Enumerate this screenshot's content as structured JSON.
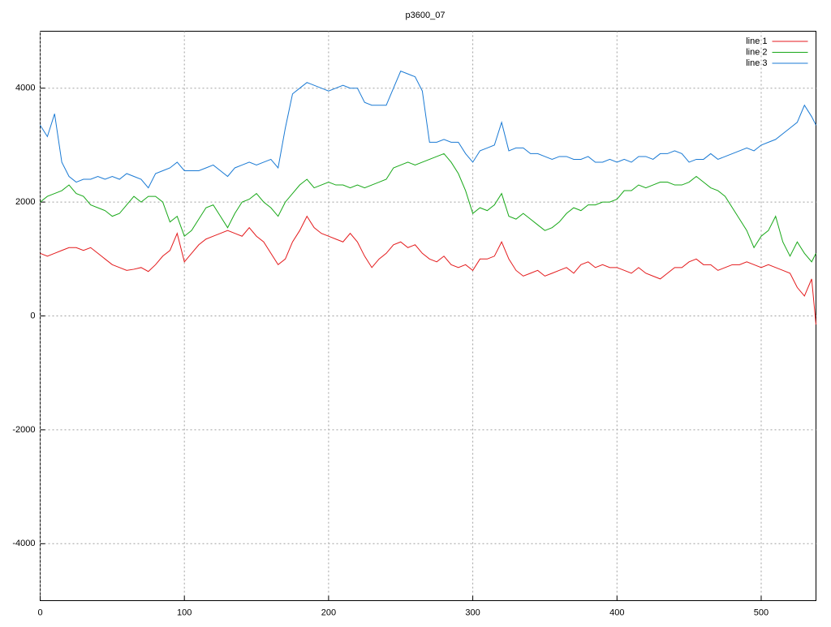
{
  "chart_data": {
    "type": "line",
    "title": "p3600_07",
    "x": [
      0,
      5,
      10,
      15,
      20,
      25,
      30,
      35,
      40,
      45,
      50,
      55,
      60,
      65,
      70,
      75,
      80,
      85,
      90,
      95,
      100,
      105,
      110,
      115,
      120,
      125,
      130,
      135,
      140,
      145,
      150,
      155,
      160,
      165,
      170,
      175,
      180,
      185,
      190,
      195,
      200,
      205,
      210,
      215,
      220,
      225,
      230,
      235,
      240,
      245,
      250,
      255,
      260,
      265,
      270,
      275,
      280,
      285,
      290,
      295,
      300,
      305,
      310,
      315,
      320,
      325,
      330,
      335,
      340,
      345,
      350,
      355,
      360,
      365,
      370,
      375,
      380,
      385,
      390,
      395,
      400,
      405,
      410,
      415,
      420,
      425,
      430,
      435,
      440,
      445,
      450,
      455,
      460,
      465,
      470,
      475,
      480,
      485,
      490,
      495,
      500,
      505,
      510,
      515,
      520,
      525,
      530,
      535,
      538
    ],
    "series": [
      {
        "name": "line 1",
        "color": "#e41a1c",
        "values": [
          1100,
          1050,
          1100,
          1150,
          1200,
          1200,
          1150,
          1200,
          1100,
          1000,
          900,
          850,
          800,
          820,
          850,
          780,
          900,
          1050,
          1150,
          1450,
          950,
          1100,
          1250,
          1350,
          1400,
          1450,
          1500,
          1450,
          1400,
          1550,
          1400,
          1300,
          1100,
          900,
          1000,
          1300,
          1500,
          1750,
          1550,
          1450,
          1400,
          1350,
          1300,
          1450,
          1300,
          1050,
          850,
          1000,
          1100,
          1250,
          1300,
          1200,
          1250,
          1100,
          1000,
          950,
          1050,
          900,
          850,
          900,
          800,
          1000,
          1000,
          1050,
          1300,
          1000,
          800,
          700,
          750,
          800,
          700,
          750,
          800,
          850,
          750,
          900,
          950,
          850,
          900,
          850,
          850,
          800,
          750,
          850,
          750,
          700,
          650,
          750,
          850,
          850,
          950,
          1000,
          900,
          900,
          800,
          850,
          900,
          900,
          950,
          900,
          850,
          900,
          850,
          800,
          750,
          500,
          350,
          650,
          -150
        ]
      },
      {
        "name": "line 2",
        "color": "#18a818",
        "values": [
          2000,
          2100,
          2150,
          2200,
          2300,
          2150,
          2100,
          1950,
          1900,
          1850,
          1750,
          1800,
          1950,
          2100,
          2000,
          2100,
          2100,
          2000,
          1650,
          1750,
          1400,
          1500,
          1700,
          1900,
          1950,
          1750,
          1550,
          1800,
          2000,
          2050,
          2150,
          2000,
          1900,
          1750,
          2000,
          2150,
          2300,
          2400,
          2250,
          2300,
          2350,
          2300,
          2300,
          2250,
          2300,
          2250,
          2300,
          2350,
          2400,
          2600,
          2650,
          2700,
          2650,
          2700,
          2750,
          2800,
          2850,
          2700,
          2500,
          2200,
          1800,
          1900,
          1850,
          1950,
          2150,
          1750,
          1700,
          1800,
          1700,
          1600,
          1500,
          1550,
          1650,
          1800,
          1900,
          1850,
          1950,
          1950,
          2000,
          2000,
          2050,
          2200,
          2200,
          2300,
          2250,
          2300,
          2350,
          2350,
          2300,
          2300,
          2350,
          2450,
          2350,
          2250,
          2200,
          2100,
          1900,
          1700,
          1500,
          1200,
          1400,
          1500,
          1750,
          1300,
          1050,
          1300,
          1100,
          950,
          1100
        ]
      },
      {
        "name": "line 3",
        "color": "#1a7ad4",
        "values": [
          3350,
          3150,
          3550,
          2700,
          2450,
          2350,
          2400,
          2400,
          2450,
          2400,
          2450,
          2400,
          2500,
          2450,
          2400,
          2250,
          2500,
          2550,
          2600,
          2700,
          2550,
          2550,
          2550,
          2600,
          2650,
          2550,
          2450,
          2600,
          2650,
          2700,
          2650,
          2700,
          2750,
          2600,
          3300,
          3900,
          4000,
          4100,
          4050,
          4000,
          3950,
          4000,
          4050,
          4000,
          4000,
          3750,
          3700,
          3700,
          3700,
          4000,
          4300,
          4250,
          4200,
          3950,
          3050,
          3050,
          3100,
          3050,
          3050,
          2850,
          2700,
          2900,
          2950,
          3000,
          3400,
          2900,
          2950,
          2950,
          2850,
          2850,
          2800,
          2750,
          2800,
          2800,
          2750,
          2750,
          2800,
          2700,
          2700,
          2750,
          2700,
          2750,
          2700,
          2800,
          2800,
          2750,
          2850,
          2850,
          2900,
          2850,
          2700,
          2750,
          2750,
          2850,
          2750,
          2800,
          2850,
          2900,
          2950,
          2900,
          3000,
          3050,
          3100,
          3200,
          3300,
          3400,
          3700,
          3500,
          3350
        ]
      }
    ],
    "xlim": [
      0,
      538
    ],
    "ylim": [
      -5000,
      5000
    ],
    "xticks": [
      0,
      100,
      200,
      300,
      400,
      500
    ],
    "yticks": [
      -4000,
      -2000,
      0,
      2000,
      4000
    ],
    "grid": true,
    "legend": "top-right"
  }
}
